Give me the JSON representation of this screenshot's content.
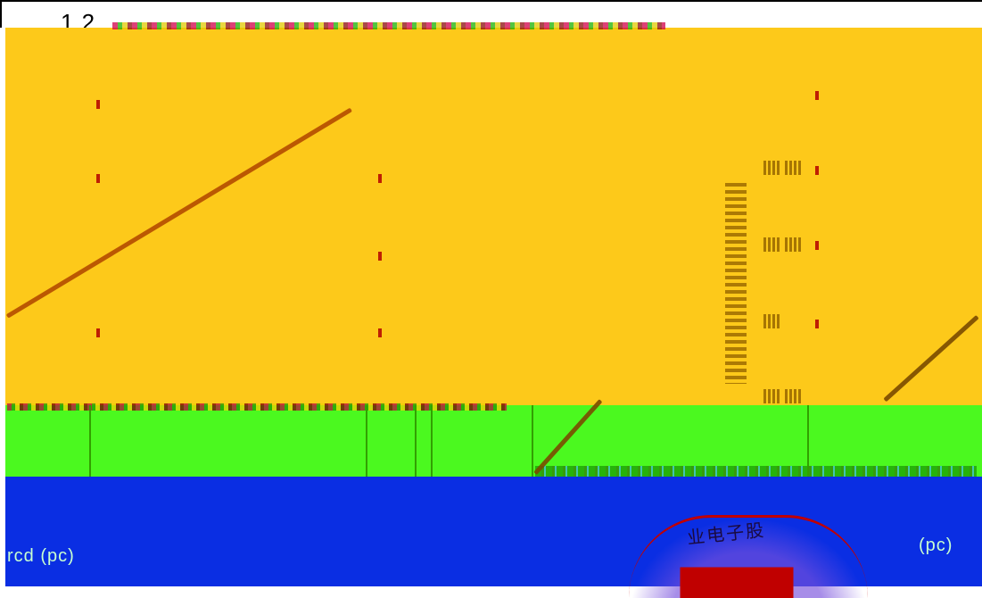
{
  "top_axis_label": "1.2",
  "stamp_text": "业电子股",
  "left_label": "rcd (pc)",
  "right_label": "(pc)",
  "colors": {
    "yellow": "#fdc91a",
    "green": "#4bf91f",
    "blue": "#0a2ee3",
    "stamp_red": "#c00000"
  }
}
